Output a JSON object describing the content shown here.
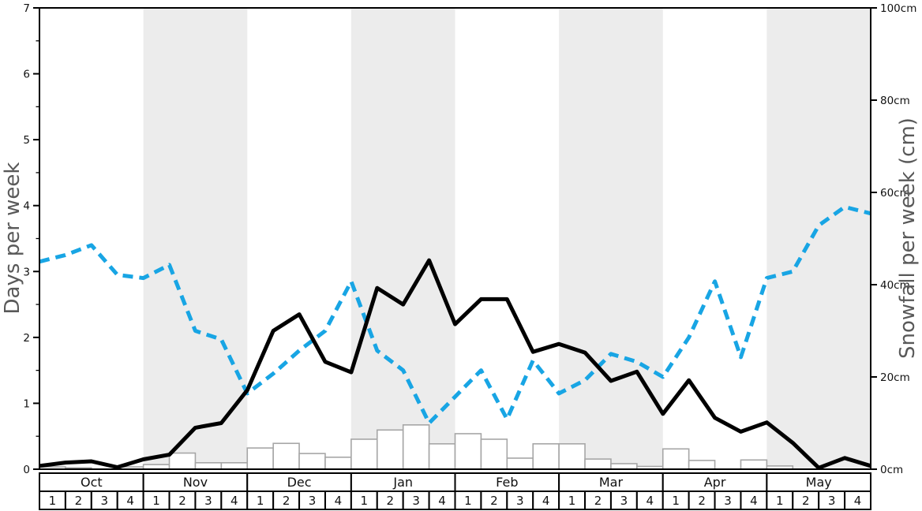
{
  "chart_data": {
    "type": "line",
    "title": "",
    "left_axis": {
      "label": "Days per week",
      "range": [
        0,
        7
      ],
      "tick_values": [
        0,
        1,
        2,
        3,
        4,
        5,
        6,
        7
      ],
      "tick_labels": [
        "0",
        "1",
        "2",
        "3",
        "4",
        "5",
        "6",
        "7"
      ],
      "minor_tick_step": 0.5
    },
    "right_axis": {
      "label": "Snowfall per week (cm)",
      "range": [
        0,
        100
      ],
      "tick_values": [
        0,
        20,
        40,
        60,
        80,
        100
      ],
      "tick_labels": [
        "0cm",
        "20cm",
        "40cm",
        "60cm",
        "80cm",
        "100cm"
      ]
    },
    "x_axis": {
      "months": [
        "Oct",
        "Nov",
        "Dec",
        "Jan",
        "Feb",
        "Mar",
        "Apr",
        "May"
      ],
      "weeks_per_month": [
        "1",
        "2",
        "3",
        "4"
      ],
      "shaded_month_indices": [
        1,
        3,
        5,
        7
      ],
      "weeks_total": 32
    },
    "series": [
      {
        "name": "black-solid-line",
        "axis": "left",
        "style": "solid",
        "color": "#000000",
        "x_mode": "week-boundaries-inclusive-33-points",
        "values": [
          0.05,
          0.1,
          0.12,
          0.03,
          0.15,
          0.22,
          0.63,
          0.7,
          1.2,
          2.1,
          2.35,
          1.63,
          1.47,
          2.75,
          2.5,
          3.17,
          2.2,
          2.58,
          2.58,
          1.78,
          1.9,
          1.77,
          1.34,
          1.48,
          0.84,
          1.35,
          0.78,
          0.57,
          0.71,
          0.4,
          0.02,
          0.17,
          0.05
        ]
      },
      {
        "name": "blue-dashed-line",
        "axis": "left",
        "style": "dashed",
        "color": "#18a5e4",
        "x_mode": "week-boundaries-inclusive-33-points",
        "values": [
          3.15,
          3.25,
          3.4,
          2.95,
          2.9,
          3.1,
          2.1,
          1.97,
          1.15,
          1.45,
          1.8,
          2.1,
          2.85,
          1.8,
          1.5,
          0.7,
          1.1,
          1.5,
          0.76,
          1.65,
          1.15,
          1.35,
          1.75,
          1.63,
          1.4,
          2.0,
          2.85,
          1.7,
          2.9,
          3.0,
          3.7,
          3.98,
          3.88
        ]
      }
    ],
    "bars": {
      "name": "snowfall-per-week-bars",
      "axis": "right",
      "unit": "cm",
      "fill": "#ffffff",
      "border": "#a6a6a6",
      "values_cm": [
        0.5,
        0.3,
        0,
        0.5,
        1.0,
        3.5,
        1.4,
        1.4,
        4.6,
        5.6,
        3.4,
        2.6,
        6.5,
        8.5,
        9.6,
        5.5,
        7.7,
        6.5,
        2.4,
        5.5,
        5.5,
        2.2,
        1.2,
        0.6,
        4.4,
        1.9,
        0,
        2.0,
        0.7,
        0,
        0,
        0
      ]
    },
    "colors": {
      "band": "#ececec",
      "spine": "#000000",
      "tick_label": "#111111",
      "axis_title": "#595959",
      "table_border": "#000000",
      "table_text": "#111111"
    },
    "legend": "none"
  }
}
